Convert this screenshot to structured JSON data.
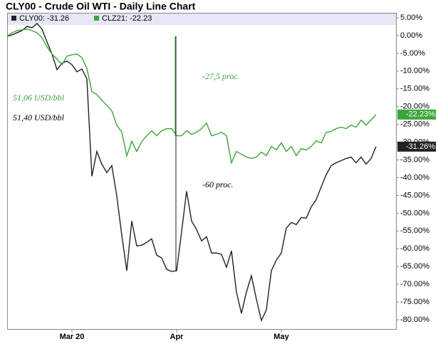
{
  "chart_data": {
    "type": "line",
    "title": "CLY00 - Crude Oil WTI - Daily Line Chart",
    "categories": [
      null,
      null,
      null,
      null,
      null,
      null,
      null,
      null,
      null,
      null,
      null,
      null,
      null,
      "Mar 20",
      null,
      null,
      null,
      null,
      null,
      null,
      null,
      null,
      null,
      null,
      null,
      null,
      null,
      null,
      null,
      null,
      null,
      null,
      null,
      null,
      "Apr",
      null,
      null,
      null,
      null,
      null,
      null,
      null,
      null,
      null,
      null,
      null,
      null,
      null,
      null,
      null,
      null,
      null,
      null,
      null,
      null,
      "May",
      null,
      null,
      null,
      null,
      null,
      null,
      null,
      null,
      null,
      null,
      null,
      null,
      null,
      null,
      null,
      null,
      null,
      null,
      null
    ],
    "series": [
      {
        "name": "CLY00: -31.26",
        "color": "#222222",
        "end_label": "-31.26%",
        "values": [
          -0.2,
          0.2,
          0.8,
          1.4,
          2.6,
          2.2,
          3.4,
          1.8,
          -1.8,
          -5.2,
          -9.6,
          -7.8,
          -7.2,
          -8.2,
          -10.2,
          -9.4,
          -12.2,
          -39.6,
          -32.6,
          -36.2,
          -38.6,
          -36.6,
          -45.2,
          -56.2,
          -66.2,
          -52.2,
          -59.2,
          -59,
          -58.2,
          -57.2,
          -61.8,
          -62.6,
          -65.8,
          -66.4,
          -66.2,
          -55.2,
          -43.8,
          -52.2,
          -54.6,
          -57.8,
          -56.6,
          -61.2,
          -61.2,
          -61.6,
          -65.2,
          -60.6,
          -72.2,
          -78.2,
          -72.2,
          -67.6,
          -74.2,
          -80.2,
          -77.2,
          -66.2,
          -63.2,
          -61.2,
          -54.2,
          -52.6,
          -53.2,
          -51.2,
          -51.4,
          -48.2,
          -46.2,
          -42.6,
          -39.2,
          -36.6,
          -35.8,
          -35.2,
          -34.6,
          -34.2,
          -35.8,
          -34.2,
          -36.2,
          -34.6,
          -31.26
        ]
      },
      {
        "name": "CLZ21: -22.23",
        "color": "#3aa63a",
        "end_label": "-22.23%",
        "values": [
          -0.2,
          0.8,
          1.4,
          1.6,
          1.8,
          1.4,
          0.8,
          -0.6,
          -3.2,
          -5.2,
          -6.6,
          -8.2,
          -5.8,
          -5.4,
          -5.2,
          -6.2,
          -9.2,
          -15.8,
          -16.6,
          -18.2,
          -19.6,
          -21.2,
          -25.2,
          -27.2,
          -33.8,
          -29.8,
          -32.6,
          -29.8,
          -28.2,
          -26.8,
          -28.2,
          -26.8,
          -26.2,
          -26.2,
          -28.2,
          -28.2,
          -26.8,
          -27.8,
          -27.2,
          -26.2,
          -24.6,
          -28.2,
          -27.8,
          -27.2,
          -28.2,
          -35.8,
          -32.6,
          -33.4,
          -34.2,
          -34.6,
          -34.2,
          -32.8,
          -33.8,
          -31.2,
          -32.2,
          -30.2,
          -32.6,
          -31.2,
          -33.8,
          -31.8,
          -32.2,
          -31.2,
          -29.6,
          -30.2,
          -27.2,
          -27,
          -26.2,
          -25.8,
          -26.2,
          -25.2,
          -25.8,
          -23.8,
          -25.2,
          -23.8,
          -22.23
        ]
      }
    ],
    "ylim": [
      -82.6,
      6.4
    ],
    "yticks": [
      {
        "value": 5,
        "label": "5.00%"
      },
      {
        "value": 0,
        "label": "0.00%"
      },
      {
        "value": -5,
        "label": "-5.00%"
      },
      {
        "value": -10,
        "label": "-10.00%"
      },
      {
        "value": -15,
        "label": "-15.00%"
      },
      {
        "value": -20,
        "label": "-20.00%"
      },
      {
        "value": -25,
        "label": "-25.00%"
      },
      {
        "value": -30,
        "label": "-30.00%"
      },
      {
        "value": -35,
        "label": "-35.00%"
      },
      {
        "value": -40,
        "label": "-40.00%"
      },
      {
        "value": -45,
        "label": "-45.00%"
      },
      {
        "value": -50,
        "label": "-50.00%"
      },
      {
        "value": -55,
        "label": "-55.00%"
      },
      {
        "value": -60,
        "label": "-60.00%"
      },
      {
        "value": -65,
        "label": "-65.00%"
      },
      {
        "value": -70,
        "label": "-70.00%"
      },
      {
        "value": -75,
        "label": "-75.00%"
      },
      {
        "value": -80,
        "label": "-80.00%"
      }
    ],
    "grid": false,
    "annotations": [
      {
        "text": "51,06 USD/bbl",
        "color": "#3aa63a"
      },
      {
        "text": "51,40 USD/bbl",
        "color": "#000000"
      },
      {
        "text": "-27,5 proc.",
        "color": "#3aa63a"
      },
      {
        "text": "-60 proc.",
        "color": "#000000"
      }
    ]
  }
}
